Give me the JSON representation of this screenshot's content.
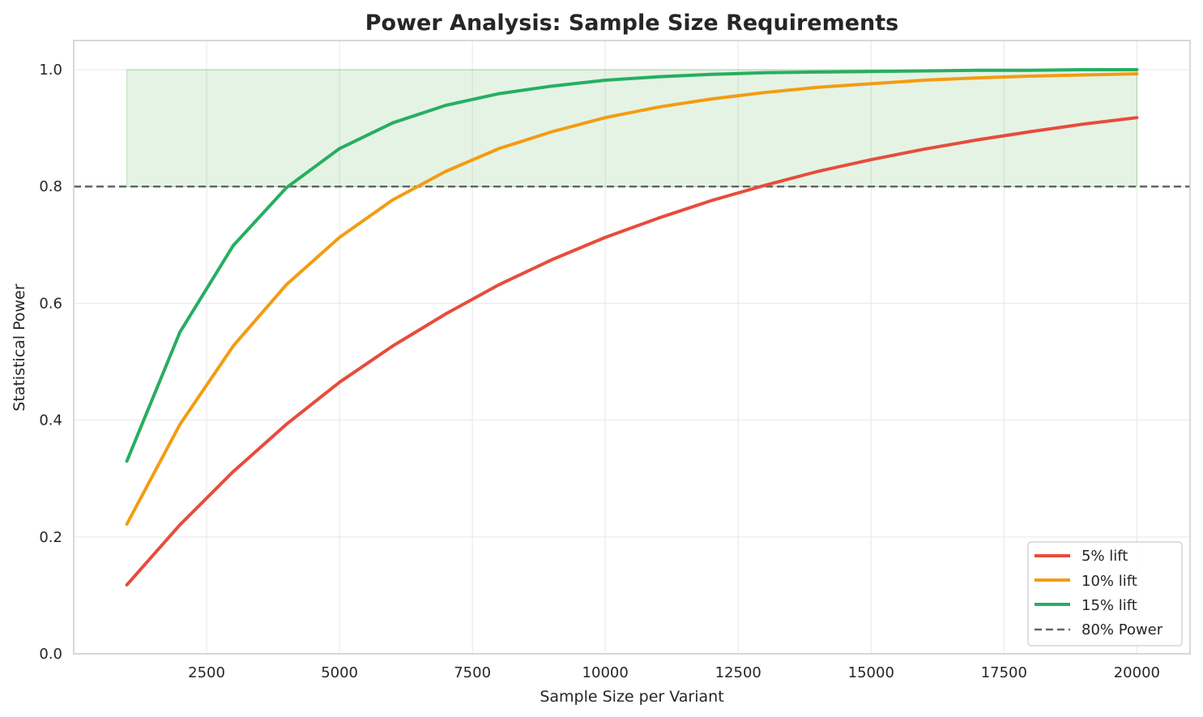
{
  "chart_data": {
    "type": "line",
    "title": "Power Analysis: Sample Size Requirements",
    "xlabel": "Sample Size per Variant",
    "ylabel": "Statistical Power",
    "xlim": [
      0,
      21000
    ],
    "ylim": [
      0.0,
      1.05
    ],
    "x_ticks": [
      2500,
      5000,
      7500,
      10000,
      12500,
      15000,
      17500,
      20000
    ],
    "y_ticks": [
      0.0,
      0.2,
      0.4,
      0.6,
      0.8,
      1.0
    ],
    "x_tick_labels": [
      "2500",
      "5000",
      "7500",
      "10000",
      "12500",
      "15000",
      "17500",
      "20000"
    ],
    "y_tick_labels": [
      "0.0",
      "0.2",
      "0.4",
      "0.6",
      "0.8",
      "1.0"
    ],
    "grid": true,
    "legend_position": "bottom-right",
    "x": [
      1000,
      2000,
      3000,
      4000,
      5000,
      6000,
      7000,
      8000,
      9000,
      10000,
      11000,
      12000,
      13000,
      14000,
      15000,
      16000,
      17000,
      18000,
      19000,
      20000
    ],
    "series": [
      {
        "name": "5% lift",
        "color": "#e74c3c",
        "values": [
          0.118,
          0.221,
          0.312,
          0.393,
          0.465,
          0.527,
          0.582,
          0.632,
          0.675,
          0.713,
          0.746,
          0.776,
          0.802,
          0.826,
          0.846,
          0.864,
          0.88,
          0.894,
          0.907,
          0.918
        ]
      },
      {
        "name": "10% lift",
        "color": "#f39c12",
        "values": [
          0.222,
          0.393,
          0.527,
          0.632,
          0.713,
          0.777,
          0.826,
          0.865,
          0.894,
          0.918,
          0.936,
          0.95,
          0.961,
          0.97,
          0.976,
          0.982,
          0.986,
          0.989,
          0.991,
          0.993
        ]
      },
      {
        "name": "15% lift",
        "color": "#27ae60",
        "values": [
          0.33,
          0.551,
          0.699,
          0.798,
          0.865,
          0.909,
          0.939,
          0.959,
          0.972,
          0.982,
          0.988,
          0.992,
          0.995,
          0.996,
          0.997,
          0.998,
          0.999,
          0.999,
          1.0,
          1.0
        ]
      }
    ],
    "reference_line": {
      "name": "80% Power",
      "y": 0.8,
      "color": "#666666",
      "style": "dashed"
    },
    "shaded_region": {
      "x": [
        1000,
        20000
      ],
      "y": [
        0.8,
        1.0
      ],
      "color": "#2ca02c"
    }
  }
}
